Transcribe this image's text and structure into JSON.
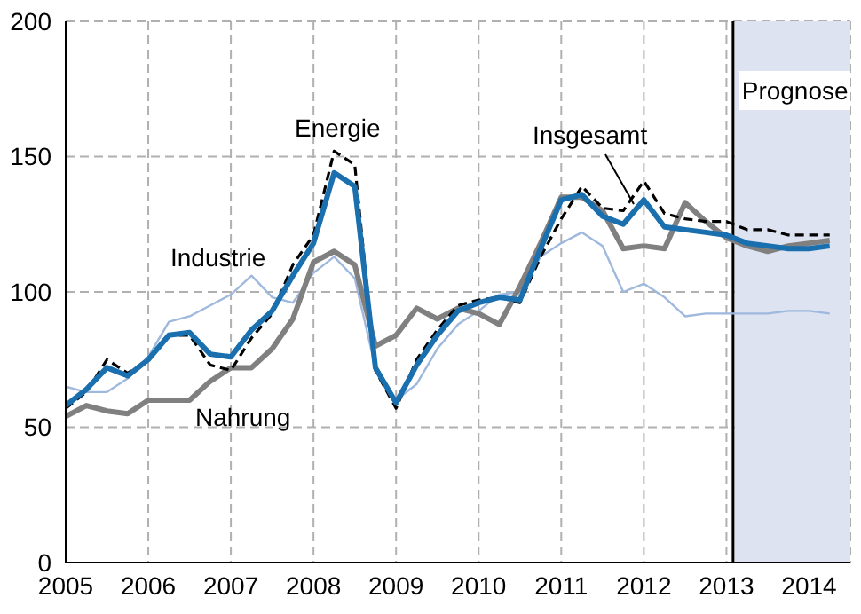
{
  "chart_data": {
    "type": "line",
    "x": [
      2005,
      2005.25,
      2005.5,
      2005.75,
      2006,
      2006.25,
      2006.5,
      2006.75,
      2007,
      2007.25,
      2007.5,
      2007.75,
      2008,
      2008.25,
      2008.5,
      2008.75,
      2009,
      2009.25,
      2009.5,
      2009.75,
      2010,
      2010.25,
      2010.5,
      2010.75,
      2011,
      2011.25,
      2011.5,
      2011.75,
      2012,
      2012.25,
      2012.5,
      2012.75,
      2013,
      2013.25,
      2013.5,
      2013.75,
      2014,
      2014.25
    ],
    "series": [
      {
        "name": "Industrie",
        "color": "#9fb8dd",
        "values": [
          65,
          63,
          63,
          68,
          76,
          89,
          91,
          95,
          99,
          106,
          98,
          96,
          107,
          113,
          105,
          72,
          60,
          66,
          79,
          88,
          93,
          99,
          100,
          113,
          118,
          122,
          117,
          100,
          103,
          98,
          91,
          92,
          92,
          92,
          92,
          93,
          93,
          92
        ]
      },
      {
        "name": "Nahrung",
        "color": "#808080",
        "values": [
          54,
          58,
          56,
          55,
          60,
          60,
          60,
          67,
          72,
          72,
          79,
          90,
          111,
          115,
          110,
          80,
          84,
          94,
          90,
          94,
          92,
          88,
          102,
          118,
          135,
          135,
          130,
          116,
          117,
          116,
          133,
          126,
          120,
          117,
          115,
          117,
          118,
          119
        ]
      },
      {
        "name": "Energie",
        "color": "#000000",
        "line_style": "dashed",
        "values": [
          57,
          63,
          75,
          70,
          75,
          84,
          84,
          73,
          71,
          83,
          92,
          110,
          121,
          152,
          147,
          71,
          57,
          75,
          86,
          95,
          97,
          98,
          96,
          113,
          127,
          139,
          131,
          130,
          141,
          129,
          127,
          126,
          126,
          123,
          123,
          121,
          121,
          121
        ]
      },
      {
        "name": "Insgesamt",
        "color": "#1a6faf",
        "values": [
          58,
          64,
          72,
          69,
          75,
          84,
          85,
          77,
          76,
          86,
          93,
          106,
          118,
          144,
          139,
          72,
          59,
          73,
          84,
          93,
          96,
          98,
          97,
          116,
          134,
          136,
          128,
          125,
          134,
          124,
          123,
          122,
          121,
          118,
          117,
          116,
          116,
          117
        ]
      }
    ],
    "xlim": [
      2005,
      2014.5
    ],
    "xticks": [
      2005,
      2006,
      2007,
      2008,
      2009,
      2010,
      2011,
      2012,
      2013,
      2014
    ],
    "ylim": [
      0,
      200
    ],
    "yticks": [
      0,
      50,
      100,
      150,
      200
    ],
    "grid": true,
    "marker": "none",
    "ref_lines": [
      {
        "axis": "x",
        "value": 2013.08,
        "color": "#000000"
      }
    ],
    "bands": [
      {
        "axis": "x",
        "from": 2013.1,
        "to": 2014.5,
        "label": "Prognose",
        "color": "#dde3f0"
      }
    ]
  }
}
